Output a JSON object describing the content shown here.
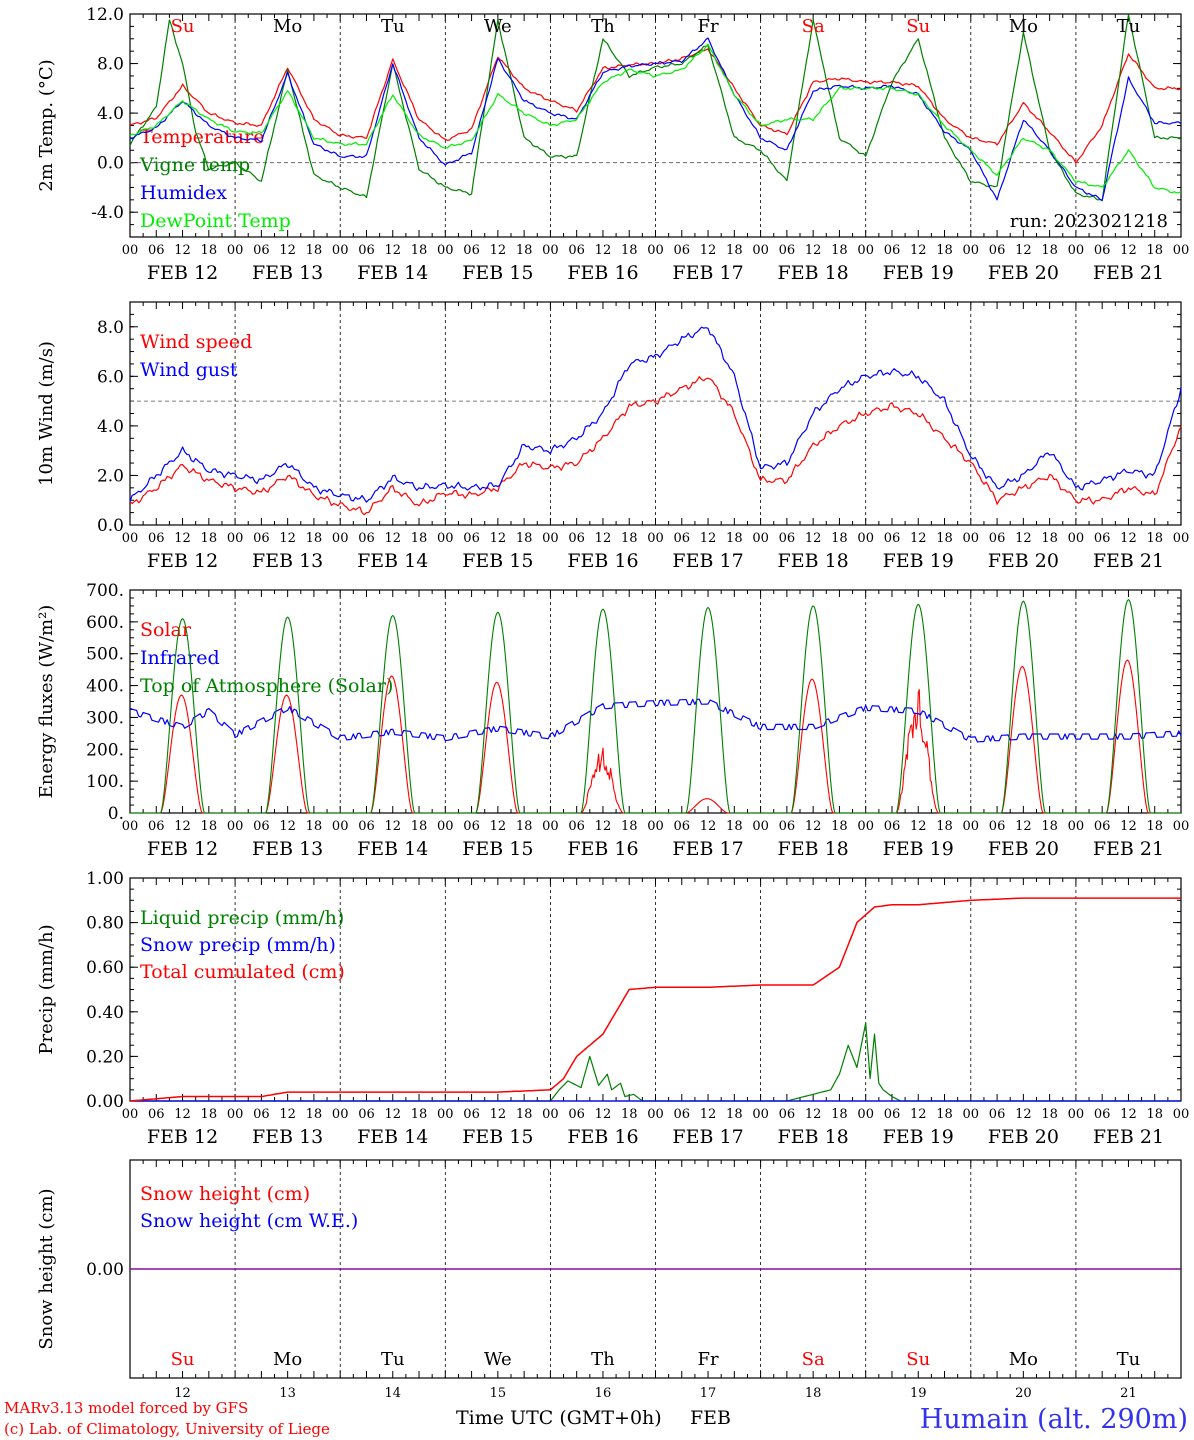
{
  "footer": {
    "model": "MARv3.13 model forced by GFS",
    "credit": "(c) Lab. of Climatology, University of Liege",
    "xlabel": "Time UTC (GMT+0h)",
    "xlabel_month": "FEB",
    "station": "Humain (alt. 290m)"
  },
  "days": {
    "dates": [
      "FEB 12",
      "FEB 13",
      "FEB 14",
      "FEB 15",
      "FEB 16",
      "FEB 17",
      "FEB 18",
      "FEB 19",
      "FEB 20",
      "FEB 21"
    ],
    "weekdays": [
      "Su",
      "Mo",
      "Tu",
      "We",
      "Th",
      "Fr",
      "Sa",
      "Su",
      "Mo",
      "Tu"
    ],
    "weekend": [
      true,
      false,
      false,
      false,
      false,
      false,
      true,
      true,
      false,
      false
    ],
    "day_numbers": [
      "12",
      "13",
      "14",
      "15",
      "16",
      "17",
      "18",
      "19",
      "20",
      "21"
    ],
    "hour_ticks": [
      "00",
      "06",
      "12",
      "18"
    ],
    "end_tick": "00"
  },
  "colors": {
    "red": "#ff0000",
    "dark_green": "#008000",
    "blue": "#0000ff",
    "light_green": "#00ee00",
    "purple": "#8000a0",
    "station_blue": "#3333ee"
  },
  "chart_data": [
    {
      "type": "line",
      "id": "temperature",
      "ylabel": "2m Temp. (°C)",
      "ylim": [
        -6.0,
        12.0
      ],
      "yticks": [
        "-4.0",
        "0.0",
        "4.0",
        "8.0",
        "12.0"
      ],
      "reference_line": 0.0,
      "annotation": "run: 2023021218",
      "x_unit": "hours from FEB 12 00 UTC",
      "series": [
        {
          "name": "Temperature",
          "color": "#ff0000",
          "x": [
            0,
            6,
            12,
            18,
            24,
            30,
            36,
            42,
            48,
            54,
            60,
            66,
            72,
            78,
            84,
            90,
            96,
            102,
            108,
            114,
            120,
            126,
            132,
            138,
            144,
            150,
            156,
            162,
            168,
            174,
            180,
            186,
            192,
            198,
            204,
            210,
            216,
            222,
            228,
            234,
            240
          ],
          "values": [
            3.0,
            3.6,
            6.2,
            4.0,
            3.2,
            3.0,
            7.7,
            3.5,
            2.2,
            2.0,
            8.3,
            3.5,
            1.8,
            2.7,
            8.6,
            6.0,
            5.0,
            4.2,
            7.6,
            7.9,
            8.0,
            8.4,
            9.2,
            6.0,
            3.0,
            2.3,
            6.5,
            6.8,
            6.5,
            6.5,
            6.2,
            3.5,
            2.0,
            1.5,
            4.8,
            2.5,
            0.0,
            3.0,
            8.8,
            6.0,
            6.0
          ]
        },
        {
          "name": "Vigne temp",
          "color": "#008000",
          "x": [
            0,
            6,
            9,
            12,
            15,
            18,
            24,
            30,
            36,
            42,
            48,
            54,
            60,
            66,
            72,
            78,
            84,
            90,
            96,
            102,
            108,
            114,
            120,
            126,
            132,
            138,
            144,
            150,
            156,
            162,
            168,
            174,
            180,
            186,
            192,
            198,
            204,
            210,
            216,
            222,
            228,
            234,
            240
          ],
          "values": [
            1.5,
            4.5,
            11.5,
            8.0,
            2.5,
            -0.5,
            0.0,
            -1.5,
            7.5,
            -1.0,
            -2.0,
            -2.8,
            8.0,
            -0.5,
            -2.0,
            -2.5,
            11.5,
            2.0,
            0.5,
            0.5,
            10.0,
            7.0,
            7.7,
            8.0,
            9.5,
            2.0,
            1.0,
            -1.5,
            11.5,
            2.0,
            0.5,
            6.5,
            10.0,
            2.0,
            -1.5,
            -2.0,
            10.5,
            1.0,
            -2.5,
            -3.0,
            12.0,
            2.0,
            2.0
          ]
        },
        {
          "name": "Humidex",
          "color": "#0000ff",
          "x": [
            0,
            6,
            12,
            18,
            24,
            30,
            36,
            42,
            48,
            54,
            60,
            66,
            72,
            78,
            84,
            90,
            96,
            102,
            108,
            114,
            120,
            126,
            132,
            138,
            144,
            150,
            156,
            162,
            168,
            174,
            180,
            186,
            192,
            198,
            204,
            210,
            216,
            222,
            228,
            234,
            240
          ],
          "values": [
            2.0,
            2.8,
            5.0,
            3.0,
            2.0,
            1.8,
            7.2,
            1.5,
            0.5,
            0.5,
            8.0,
            2.0,
            -0.2,
            0.8,
            8.4,
            5.0,
            4.0,
            3.5,
            7.3,
            7.8,
            8.0,
            8.2,
            10.0,
            5.5,
            2.0,
            1.0,
            5.8,
            6.2,
            6.0,
            6.2,
            5.5,
            2.5,
            1.0,
            -3.0,
            3.5,
            1.0,
            -2.0,
            -3.0,
            6.8,
            3.2,
            3.2
          ]
        },
        {
          "name": "DewPoint Temp",
          "color": "#00ee00",
          "x": [
            0,
            6,
            12,
            18,
            24,
            30,
            36,
            42,
            48,
            54,
            60,
            66,
            72,
            78,
            84,
            90,
            96,
            102,
            108,
            114,
            120,
            126,
            132,
            138,
            144,
            150,
            156,
            162,
            168,
            174,
            180,
            186,
            192,
            198,
            204,
            210,
            216,
            222,
            228,
            234,
            240
          ],
          "values": [
            2.2,
            3.0,
            5.0,
            3.5,
            2.5,
            2.4,
            5.8,
            2.0,
            1.5,
            1.5,
            5.5,
            2.2,
            1.2,
            1.8,
            5.5,
            4.0,
            3.0,
            3.5,
            6.5,
            7.5,
            7.0,
            7.5,
            9.5,
            5.5,
            3.0,
            3.5,
            3.5,
            6.0,
            6.0,
            6.0,
            5.5,
            3.0,
            1.0,
            -1.0,
            2.0,
            1.0,
            -1.5,
            -2.0,
            1.0,
            -2.0,
            -2.5
          ]
        }
      ]
    },
    {
      "type": "line",
      "id": "wind",
      "ylabel": "10m Wind (m/s)",
      "ylim": [
        0.0,
        9.0
      ],
      "yticks": [
        "0.0",
        "2.0",
        "4.0",
        "6.0",
        "8.0"
      ],
      "reference_line": 5.0,
      "x_unit": "hours from FEB 12 00 UTC",
      "series": [
        {
          "name": "Wind speed",
          "color": "#ff0000",
          "x": [
            0,
            6,
            12,
            18,
            24,
            30,
            36,
            42,
            48,
            54,
            60,
            66,
            72,
            78,
            84,
            90,
            96,
            102,
            108,
            114,
            120,
            126,
            132,
            138,
            144,
            150,
            156,
            162,
            168,
            174,
            180,
            186,
            192,
            198,
            204,
            210,
            216,
            222,
            228,
            234,
            240
          ],
          "values": [
            0.8,
            1.5,
            2.4,
            1.8,
            1.5,
            1.3,
            2.0,
            1.2,
            0.8,
            0.5,
            1.5,
            0.8,
            1.3,
            1.2,
            1.5,
            2.5,
            2.3,
            2.5,
            3.5,
            4.8,
            5.0,
            5.5,
            6.0,
            4.5,
            1.8,
            1.8,
            3.2,
            4.0,
            4.5,
            4.8,
            4.5,
            3.5,
            2.5,
            1.0,
            1.5,
            2.0,
            1.0,
            1.0,
            1.5,
            1.2,
            4.0
          ]
        },
        {
          "name": "Wind gust",
          "color": "#0000ff",
          "x": [
            0,
            6,
            12,
            18,
            24,
            30,
            36,
            42,
            48,
            54,
            60,
            66,
            72,
            78,
            84,
            90,
            96,
            102,
            108,
            114,
            120,
            126,
            132,
            138,
            144,
            150,
            156,
            162,
            168,
            174,
            180,
            186,
            192,
            198,
            204,
            210,
            216,
            222,
            228,
            234,
            240
          ],
          "values": [
            1.0,
            2.0,
            3.0,
            2.2,
            2.0,
            1.8,
            2.5,
            1.5,
            1.2,
            1.0,
            1.9,
            1.5,
            1.6,
            1.5,
            1.6,
            3.2,
            3.0,
            3.5,
            4.5,
            6.5,
            6.8,
            7.5,
            8.0,
            6.0,
            2.3,
            2.5,
            4.5,
            5.5,
            6.0,
            6.2,
            6.0,
            5.0,
            2.8,
            1.5,
            2.0,
            3.0,
            1.5,
            1.8,
            2.2,
            2.0,
            5.5
          ]
        }
      ]
    },
    {
      "type": "line",
      "id": "energy",
      "ylabel": "Energy fluxes (W/m²)",
      "ylim": [
        0,
        700
      ],
      "yticks": [
        "0.",
        "100.",
        "200.",
        "300.",
        "400.",
        "500.",
        "600.",
        "700."
      ],
      "x_unit": "hours from FEB 12 00 UTC",
      "series": [
        {
          "name": "Solar",
          "color": "#ff0000",
          "daily_peak": [
            370,
            370,
            430,
            410,
            220,
            45,
            420,
            420,
            460,
            480
          ],
          "daily_hours": [
            7,
            16.5
          ]
        },
        {
          "name": "Infrared",
          "color": "#0000ff",
          "x": [
            0,
            12,
            18,
            24,
            36,
            48,
            60,
            72,
            84,
            96,
            108,
            120,
            132,
            144,
            156,
            168,
            180,
            192,
            204,
            216,
            228,
            240
          ],
          "values": [
            320,
            270,
            320,
            245,
            330,
            235,
            255,
            235,
            265,
            240,
            335,
            345,
            350,
            270,
            270,
            330,
            320,
            230,
            240,
            240,
            240,
            250
          ]
        },
        {
          "name": "Top of Atmosphere (Solar)",
          "color": "#008000",
          "daily_peak": [
            610,
            615,
            620,
            630,
            640,
            645,
            650,
            655,
            665,
            670
          ],
          "daily_hours": [
            7,
            17
          ]
        }
      ]
    },
    {
      "type": "line",
      "id": "precip",
      "ylabel": "Precip (mm/h)",
      "ylim": [
        0.0,
        1.0
      ],
      "yticks": [
        "0.00",
        "0.20",
        "0.40",
        "0.60",
        "0.80",
        "1.00"
      ],
      "x_unit": "hours from FEB 12 00 UTC",
      "series": [
        {
          "name": "Liquid precip (mm/h)",
          "color": "#008000",
          "x": [
            0,
            96,
            98,
            100,
            103,
            105,
            107,
            109,
            110,
            112,
            113,
            115,
            117,
            120,
            123,
            126,
            150,
            160,
            162,
            164,
            166,
            168,
            169,
            170,
            171,
            172,
            174,
            176,
            180,
            240
          ],
          "values": [
            0,
            0,
            0.05,
            0.09,
            0.06,
            0.2,
            0.07,
            0.12,
            0.05,
            0.08,
            0.02,
            0.03,
            0,
            0,
            0,
            0,
            0,
            0.05,
            0.12,
            0.25,
            0.15,
            0.35,
            0.1,
            0.3,
            0.08,
            0.05,
            0.02,
            0,
            0,
            0
          ]
        },
        {
          "name": "Snow precip (mm/h)",
          "color": "#0000ff",
          "x": [
            0,
            240
          ],
          "values": [
            0,
            0
          ]
        },
        {
          "name": "Total cumulated (cm)",
          "color": "#ff0000",
          "x": [
            0,
            12,
            24,
            30,
            36,
            84,
            96,
            99,
            102,
            108,
            114,
            120,
            132,
            144,
            156,
            162,
            166,
            170,
            174,
            180,
            192,
            204,
            240
          ],
          "values": [
            0,
            0.02,
            0.02,
            0.02,
            0.04,
            0.04,
            0.05,
            0.1,
            0.2,
            0.3,
            0.5,
            0.51,
            0.51,
            0.52,
            0.52,
            0.6,
            0.8,
            0.87,
            0.88,
            0.88,
            0.9,
            0.91,
            0.91
          ]
        }
      ]
    },
    {
      "type": "line",
      "id": "snow",
      "ylabel": "Snow height (cm)",
      "ylim": [
        -1.0,
        1.0
      ],
      "yticks": [
        "0.00"
      ],
      "x_unit": "hours from FEB 12 00 UTC",
      "series": [
        {
          "name": "Snow height (cm)",
          "color": "#ff0000",
          "x": [
            0,
            240
          ],
          "values": [
            0,
            0
          ]
        },
        {
          "name": "Snow height (cm W.E.)",
          "color": "#0000ff",
          "x": [
            0,
            240
          ],
          "values": [
            0,
            0
          ]
        }
      ]
    }
  ]
}
